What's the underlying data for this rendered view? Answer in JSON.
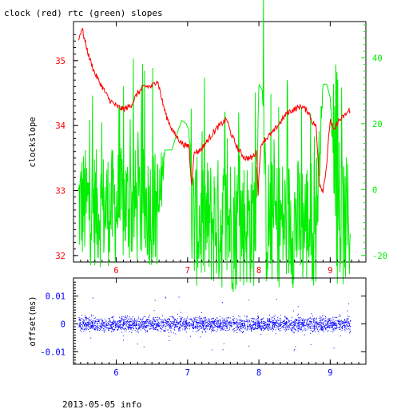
{
  "title": "clock (red) rtc (green) slopes",
  "footer": "2013-05-05 info",
  "colors": {
    "red": "#ff0000",
    "green": "#00ee00",
    "blue": "#0000ff",
    "axis": "#000000"
  },
  "chart_data": [
    {
      "type": "line",
      "name": "slopes",
      "xlabel": "",
      "ylabel": "clockslope",
      "xlim": [
        5.4,
        9.5
      ],
      "ylim_left": [
        31.9,
        35.6
      ],
      "ylim_right": [
        -22,
        51
      ],
      "x_ticks": [
        "6",
        "7",
        "8",
        "9"
      ],
      "y_ticks_left": [
        "32",
        "33",
        "34",
        "35"
      ],
      "y_ticks_right": [
        "-20",
        "0",
        "20",
        "40"
      ],
      "series": [
        {
          "name": "clock",
          "color": "#ff0000",
          "axis": "left",
          "x": [
            5.47,
            5.49,
            5.52,
            5.56,
            5.62,
            5.7,
            5.8,
            5.9,
            6.0,
            6.1,
            6.2,
            6.3,
            6.4,
            6.5,
            6.57,
            6.6,
            6.65,
            6.7,
            6.8,
            6.9,
            6.98,
            7.02,
            7.04,
            7.06,
            7.08,
            7.1,
            7.15,
            7.2,
            7.3,
            7.4,
            7.5,
            7.55,
            7.6,
            7.7,
            7.8,
            7.9,
            7.97,
            7.99,
            8.0,
            8.02,
            8.05,
            8.1,
            8.2,
            8.3,
            8.4,
            8.5,
            8.6,
            8.7,
            8.75,
            8.8,
            8.85,
            8.9,
            8.95,
            9.0,
            9.05,
            9.1,
            9.2,
            9.28
          ],
          "y": [
            35.3,
            35.4,
            35.5,
            35.3,
            35.05,
            34.8,
            34.6,
            34.4,
            34.3,
            34.25,
            34.3,
            34.5,
            34.6,
            34.6,
            34.7,
            34.6,
            34.35,
            34.15,
            33.9,
            33.75,
            33.68,
            33.7,
            33.3,
            33.1,
            33.45,
            33.6,
            33.6,
            33.65,
            33.8,
            33.95,
            34.05,
            34.1,
            33.9,
            33.65,
            33.5,
            33.5,
            33.6,
            32.9,
            33.25,
            33.6,
            33.75,
            33.8,
            33.9,
            34.05,
            34.2,
            34.25,
            34.3,
            34.2,
            34.05,
            34.0,
            33.1,
            33.0,
            33.4,
            34.1,
            33.9,
            34.05,
            34.15,
            34.25
          ]
        },
        {
          "name": "rtc",
          "color": "#00ee00",
          "axis": "right",
          "x": [
            5.47,
            5.6,
            5.8,
            6.0,
            6.2,
            6.4,
            6.6,
            6.68,
            6.72,
            6.78,
            6.85,
            6.92,
            6.98,
            7.02,
            7.06,
            7.2,
            7.4,
            7.6,
            7.8,
            7.95,
            8.0,
            8.05,
            8.1,
            8.2,
            8.4,
            8.6,
            8.8,
            8.9,
            8.95,
            9.0,
            9.1,
            9.2,
            9.28
          ],
          "y_center": [
            -5,
            -5,
            -6,
            -5,
            -5,
            -5,
            -6,
            12,
            12,
            12,
            17,
            21,
            20,
            18,
            -10,
            -10,
            -10,
            -10,
            -10,
            -10,
            32,
            30,
            -10,
            -10,
            -10,
            -10,
            -10,
            32,
            32,
            28,
            -10,
            -10,
            -10
          ],
          "y_band": [
            18,
            18,
            18,
            18,
            18,
            18,
            18,
            0,
            0,
            0,
            0,
            0,
            0,
            0,
            20,
            20,
            20,
            22,
            20,
            20,
            0,
            0,
            20,
            20,
            20,
            20,
            20,
            0,
            0,
            0,
            20,
            20,
            20
          ]
        }
      ]
    },
    {
      "type": "scatter",
      "name": "offset",
      "xlabel": "",
      "ylabel": "offset(ms)",
      "xlim": [
        5.4,
        9.5
      ],
      "ylim": [
        -0.0145,
        0.0165
      ],
      "x_ticks": [
        "6",
        "7",
        "8",
        "9"
      ],
      "y_ticks": [
        "-0.01",
        "0",
        "0.01"
      ],
      "x_range": [
        5.47,
        9.28
      ],
      "y_spread": 0.0025,
      "color": "#0000ff"
    }
  ]
}
